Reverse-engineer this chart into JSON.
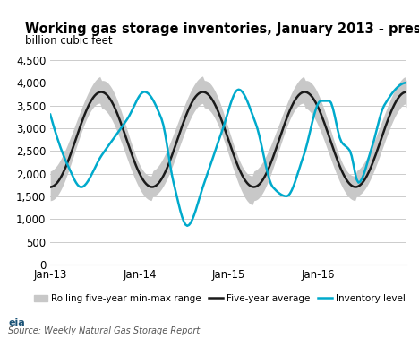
{
  "title": "Working gas storage inventories, January 2013 - present",
  "ylabel": "billion cubic feet",
  "source": "Source: Weekly Natural Gas Storage Report",
  "bg_color": "#ffffff",
  "grid_color": "#cccccc",
  "avg_color": "#1a1a1a",
  "inventory_color": "#00aacc",
  "band_color": "#c8c8c8",
  "ylim": [
    0,
    4700
  ],
  "yticks": [
    0,
    500,
    1000,
    1500,
    2000,
    2500,
    3000,
    3500,
    4000,
    4500
  ],
  "xtick_labels": [
    "Jan-13",
    "Jan-14",
    "Jan-15",
    "Jan-16"
  ],
  "n_points": 209,
  "weeks_per_year": 52
}
